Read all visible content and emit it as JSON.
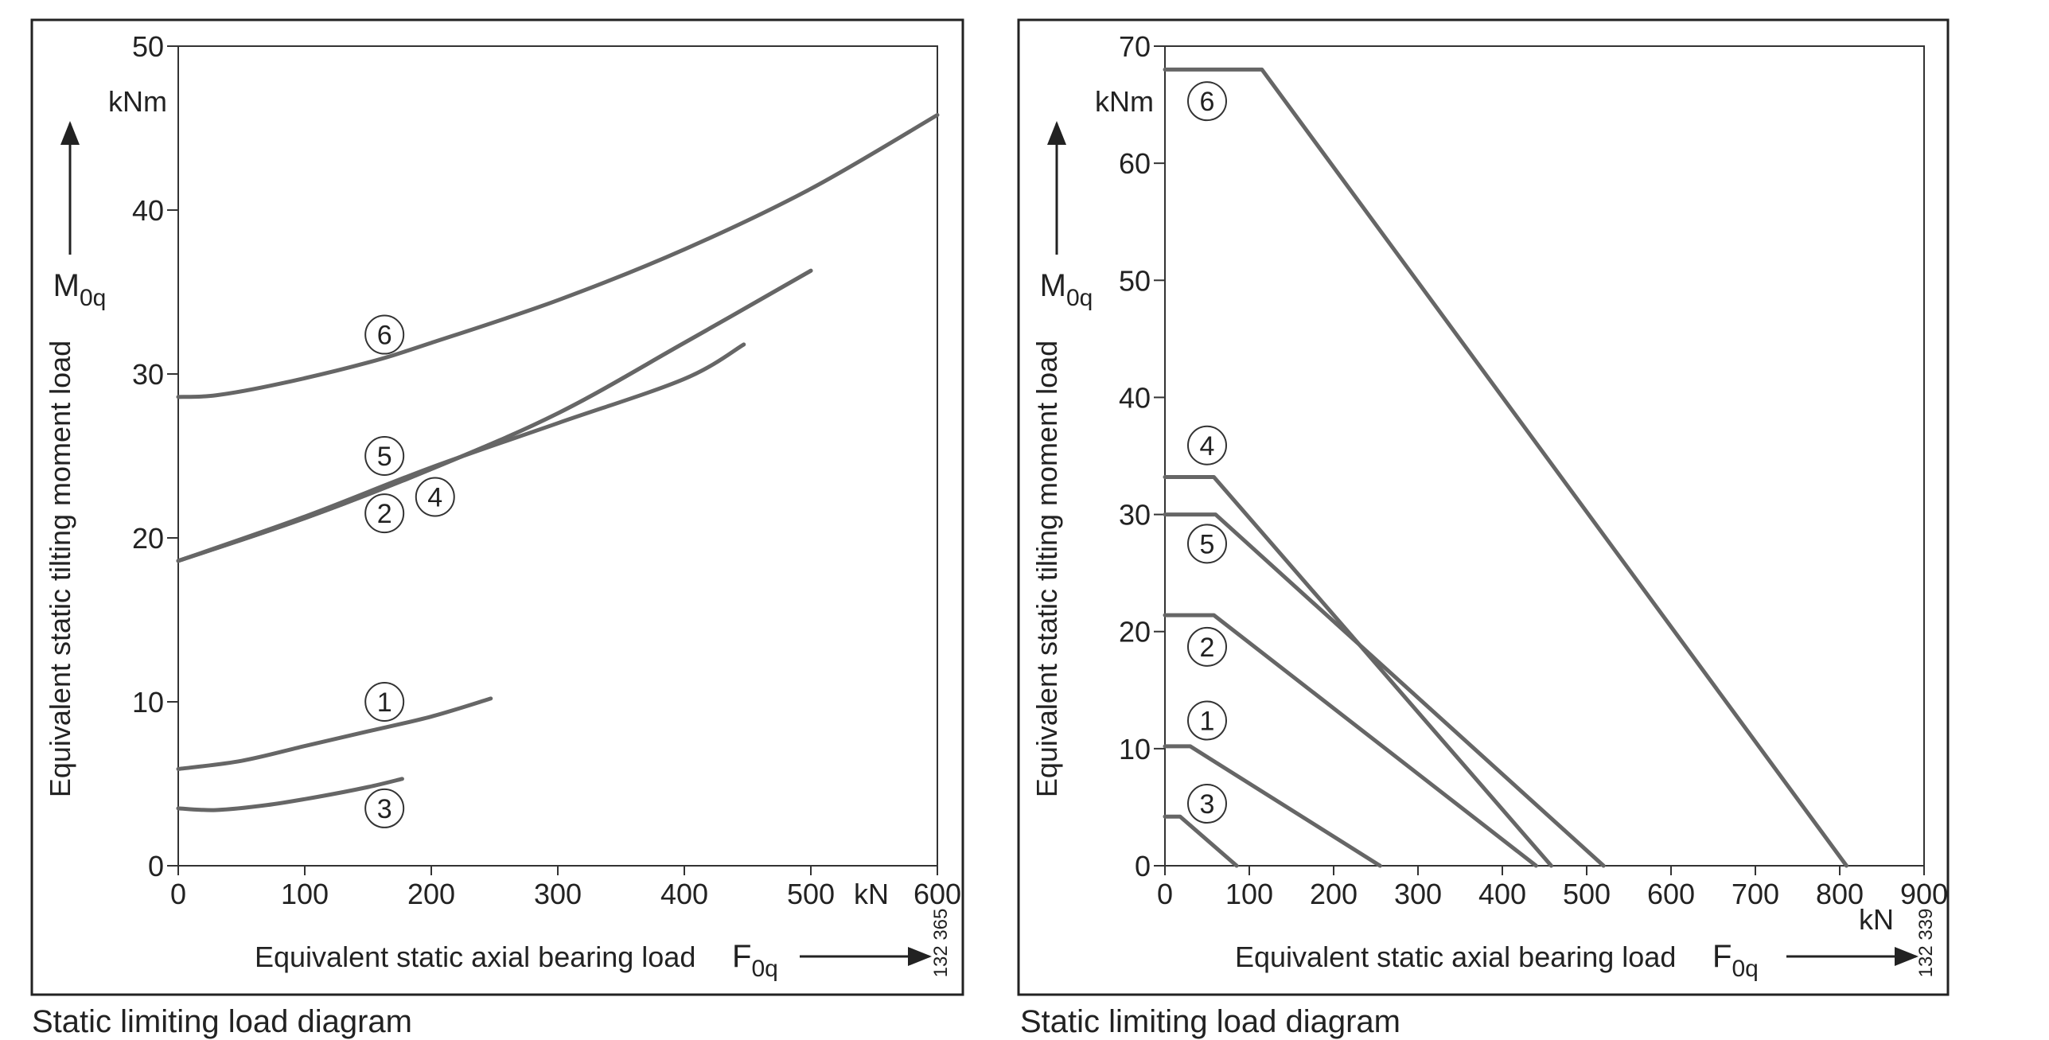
{
  "chart_data": [
    {
      "type": "line",
      "ylabel": "Equivalent static tilting moment load",
      "y_symbol": "M",
      "y_symbol_sub": "0q",
      "y_unit": "kNm",
      "xlabel": "Equivalent static axial bearing load",
      "x_symbol": "F",
      "x_symbol_sub": "0q",
      "x_unit": "kN",
      "xlim": [
        0,
        600
      ],
      "ylim": [
        0,
        50
      ],
      "x_ticks": [
        0,
        100,
        200,
        300,
        400,
        500,
        600
      ],
      "y_ticks": [
        0,
        10,
        20,
        30,
        40,
        50
      ],
      "figure_number": "132 365",
      "caption": "Static limiting load diagram",
      "series": [
        {
          "name": "6",
          "points": [
            [
              0,
              28.6
            ],
            [
              30,
              28.7
            ],
            [
              80,
              29.4
            ],
            [
              150,
              30.7
            ],
            [
              200,
              31.9
            ],
            [
              300,
              34.5
            ],
            [
              400,
              37.6
            ],
            [
              500,
              41.3
            ],
            [
              600,
              45.8
            ]
          ]
        },
        {
          "name": "5",
          "points": [
            [
              0,
              18.6
            ],
            [
              100,
              21.2
            ],
            [
              200,
              24.2
            ],
            [
              300,
              27.6
            ],
            [
              400,
              31.9
            ],
            [
              500,
              36.3
            ]
          ]
        },
        {
          "name": "4",
          "points": [
            [
              0,
              18.6
            ],
            [
              100,
              21.3
            ],
            [
              200,
              24.3
            ],
            [
              300,
              27.0
            ],
            [
              400,
              29.7
            ],
            [
              447,
              31.8
            ]
          ]
        },
        {
          "name": "2",
          "points": [
            [
              0,
              18.6
            ],
            [
              100,
              21.2
            ],
            [
              200,
              24.2
            ],
            [
              300,
              27.6
            ],
            [
              400,
              31.9
            ],
            [
              500,
              36.3
            ]
          ]
        },
        {
          "name": "1",
          "points": [
            [
              0,
              5.9
            ],
            [
              50,
              6.4
            ],
            [
              100,
              7.3
            ],
            [
              150,
              8.2
            ],
            [
              200,
              9.1
            ],
            [
              247,
              10.2
            ]
          ]
        },
        {
          "name": "3",
          "points": [
            [
              0,
              3.5
            ],
            [
              30,
              3.4
            ],
            [
              70,
              3.7
            ],
            [
              110,
              4.2
            ],
            [
              150,
              4.8
            ],
            [
              177,
              5.3
            ]
          ]
        }
      ],
      "curve_labels": [
        {
          "name": "6",
          "x": 163,
          "y": 32.4
        },
        {
          "name": "5",
          "x": 163,
          "y": 25.0
        },
        {
          "name": "2",
          "x": 163,
          "y": 21.5
        },
        {
          "name": "4",
          "x": 203,
          "y": 22.5
        },
        {
          "name": "1",
          "x": 163,
          "y": 10.0
        },
        {
          "name": "3",
          "x": 163,
          "y": 3.5
        }
      ]
    },
    {
      "type": "line",
      "ylabel": "Equivalent static tilting moment load",
      "y_symbol": "M",
      "y_symbol_sub": "0q",
      "y_unit": "kNm",
      "xlabel": "Equivalent static axial bearing load",
      "x_symbol": "F",
      "x_symbol_sub": "0q",
      "x_unit": "kN",
      "xlim": [
        0,
        900
      ],
      "ylim": [
        0,
        70
      ],
      "x_ticks": [
        0,
        100,
        200,
        300,
        400,
        500,
        600,
        700,
        800,
        900
      ],
      "y_ticks": [
        0,
        10,
        20,
        30,
        40,
        50,
        60,
        70
      ],
      "figure_number": "132 339",
      "caption": "Static limiting load diagram",
      "series": [
        {
          "name": "6",
          "points": [
            [
              0,
              68
            ],
            [
              115,
              68
            ],
            [
              808,
              0
            ]
          ]
        },
        {
          "name": "4",
          "points": [
            [
              0,
              33.2
            ],
            [
              58,
              33.2
            ],
            [
              458,
              0
            ]
          ]
        },
        {
          "name": "5",
          "points": [
            [
              0,
              30
            ],
            [
              60,
              30
            ],
            [
              520,
              0
            ]
          ]
        },
        {
          "name": "2",
          "points": [
            [
              0,
              21.4
            ],
            [
              58,
              21.4
            ],
            [
              440,
              0
            ]
          ]
        },
        {
          "name": "1",
          "points": [
            [
              0,
              10.2
            ],
            [
              30,
              10.2
            ],
            [
              255,
              0
            ]
          ]
        },
        {
          "name": "3",
          "points": [
            [
              0,
              4.2
            ],
            [
              18,
              4.2
            ],
            [
              85,
              0
            ]
          ]
        }
      ],
      "curve_labels": [
        {
          "name": "6",
          "x": 50,
          "y": 65.3
        },
        {
          "name": "4",
          "x": 50,
          "y": 35.9
        },
        {
          "name": "5",
          "x": 50,
          "y": 27.5
        },
        {
          "name": "2",
          "x": 50,
          "y": 18.7
        },
        {
          "name": "1",
          "x": 50,
          "y": 12.4
        },
        {
          "name": "3",
          "x": 50,
          "y": 5.3
        }
      ]
    }
  ]
}
